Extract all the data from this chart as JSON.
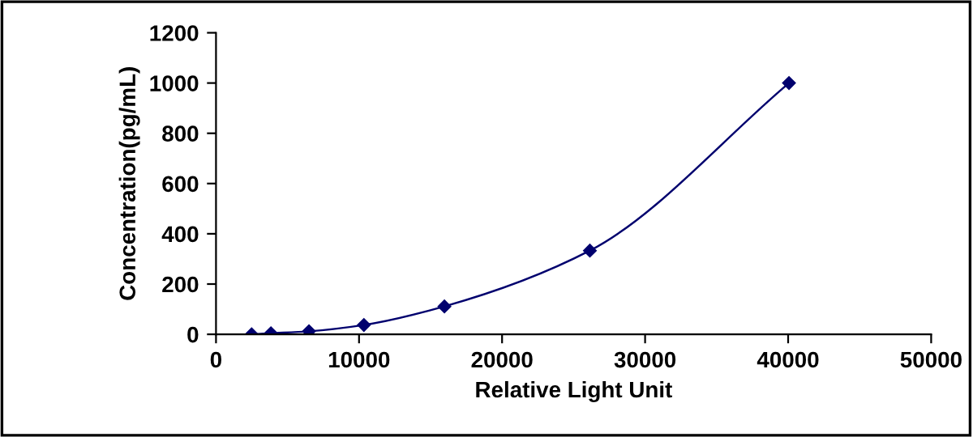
{
  "chart_data": {
    "type": "line",
    "xlabel": "Relative Light Unit",
    "ylabel": "Concentration(pg/mL)",
    "x": [
      2490,
      3840,
      6500,
      10340,
      15970,
      26140,
      40060
    ],
    "series": [
      {
        "color": "#00006e",
        "values": [
          0,
          4,
          12,
          37,
          111,
          333,
          1000
        ]
      }
    ],
    "xlim": [
      0,
      50000
    ],
    "xticks": [
      0,
      10000,
      20000,
      30000,
      40000,
      50000
    ],
    "ylim": [
      0,
      1200
    ],
    "yticks": [
      0,
      200,
      400,
      600,
      800,
      1000,
      1200
    ],
    "marker": "diamond",
    "line_style": "solid",
    "grid": false,
    "legend": false
  }
}
